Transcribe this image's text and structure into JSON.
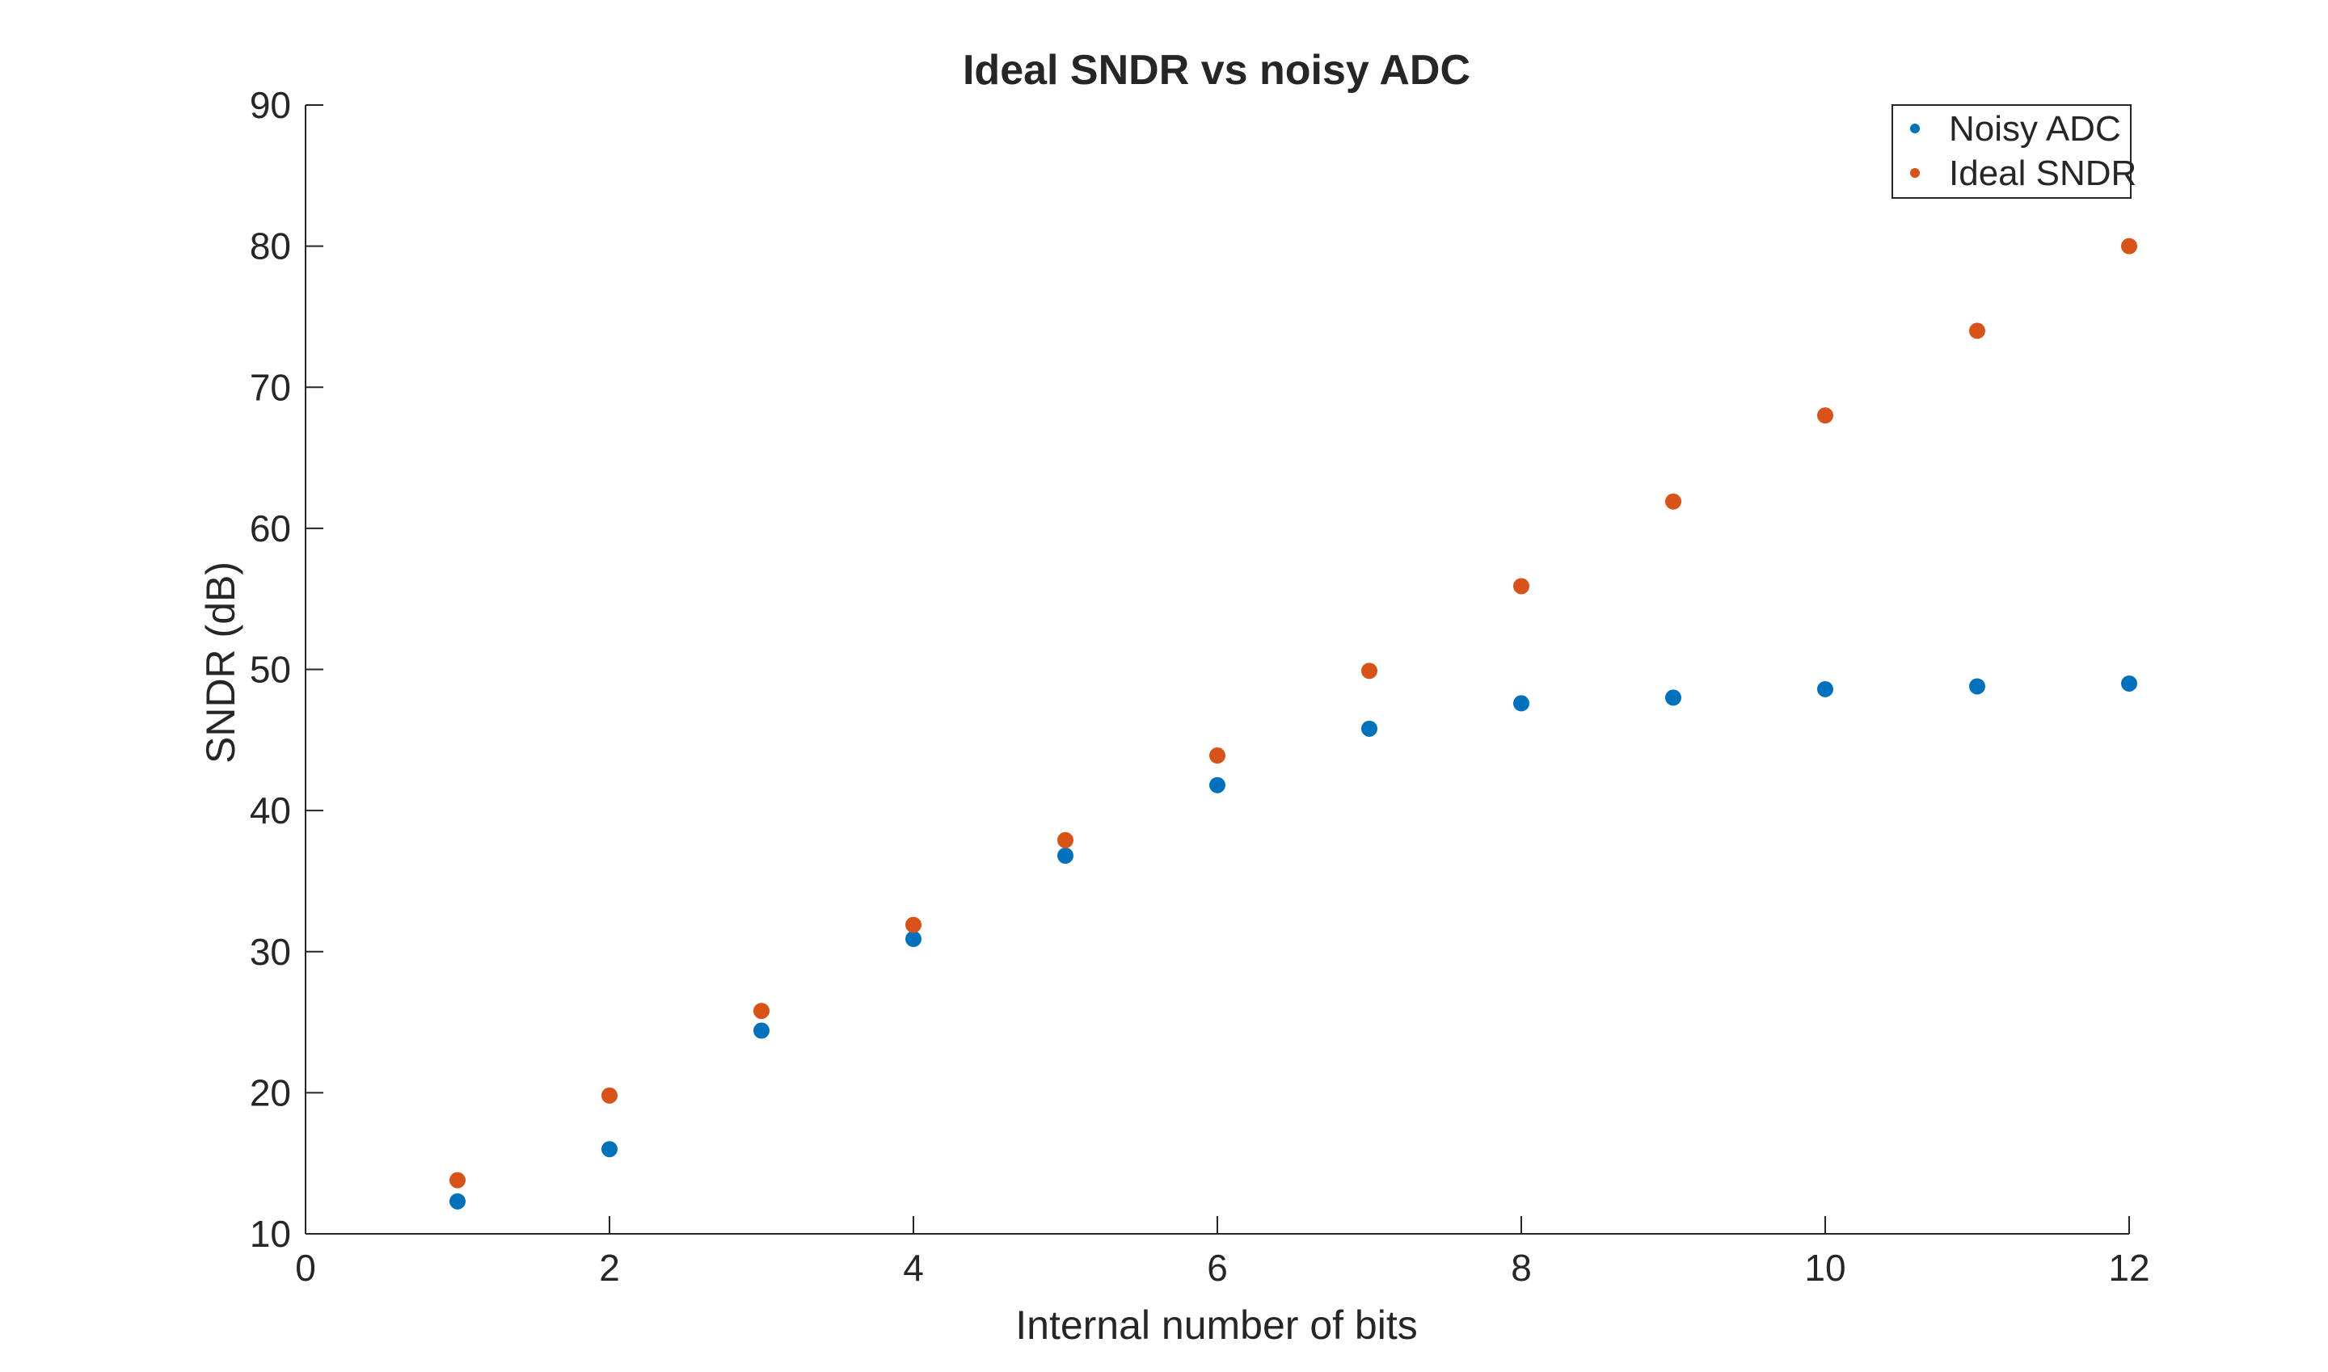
{
  "chart_data": {
    "type": "scatter",
    "title": "Ideal SNDR vs noisy ADC",
    "xlabel": "Internal number of bits",
    "ylabel": "SNDR (dB)",
    "xlim": [
      0,
      12
    ],
    "ylim": [
      10,
      90
    ],
    "xticks": [
      0,
      2,
      4,
      6,
      8,
      10,
      12
    ],
    "yticks": [
      10,
      20,
      30,
      40,
      50,
      60,
      70,
      80,
      90
    ],
    "grid": false,
    "legend_position": "top-right",
    "series": [
      {
        "name": "Noisy ADC",
        "color": "#0072BD",
        "x": [
          1,
          2,
          3,
          4,
          5,
          6,
          7,
          8,
          9,
          10,
          11,
          12
        ],
        "y": [
          12.3,
          16.0,
          24.4,
          30.9,
          36.8,
          41.8,
          45.8,
          47.6,
          48.0,
          48.6,
          48.8,
          49.0
        ]
      },
      {
        "name": "Ideal SNDR",
        "color": "#D95319",
        "x": [
          1,
          2,
          3,
          4,
          5,
          6,
          7,
          8,
          9,
          10,
          11,
          12
        ],
        "y": [
          13.8,
          19.8,
          25.8,
          31.9,
          37.9,
          43.9,
          49.9,
          55.9,
          61.9,
          68.0,
          74.0,
          80.0
        ]
      }
    ]
  }
}
